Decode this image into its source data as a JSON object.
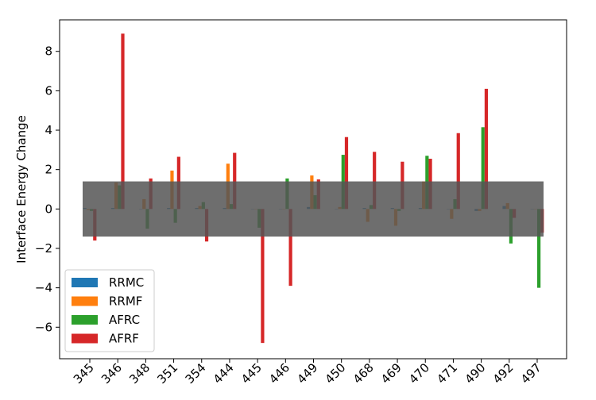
{
  "chart_data": {
    "type": "bar",
    "ylabel": "Interface Energy Change",
    "xlabel": "",
    "categories": [
      "345",
      "346",
      "348",
      "351",
      "354",
      "444",
      "445",
      "446",
      "449",
      "450",
      "468",
      "469",
      "470",
      "471",
      "490",
      "492",
      "497"
    ],
    "ylim": [
      -7.6,
      9.6
    ],
    "yticks": [
      -6,
      -4,
      -2,
      0,
      2,
      4,
      6,
      8
    ],
    "series": [
      {
        "name": "RRMC",
        "color": "#1f77b4",
        "values": [
          0.05,
          0.05,
          0.0,
          0.05,
          0.05,
          0.05,
          0.0,
          0.0,
          0.1,
          0.0,
          0.05,
          0.05,
          0.05,
          0.0,
          -0.1,
          0.15,
          0.0
        ]
      },
      {
        "name": "RRMF",
        "color": "#ff7f0e",
        "values": [
          -0.05,
          1.35,
          0.5,
          1.95,
          0.15,
          2.3,
          0.0,
          0.0,
          1.7,
          0.1,
          -0.65,
          -0.85,
          1.4,
          -0.5,
          -0.1,
          0.3,
          0.0
        ]
      },
      {
        "name": "AFRC",
        "color": "#2ca02c",
        "values": [
          -0.1,
          1.2,
          -1.0,
          -0.7,
          0.35,
          0.25,
          -0.95,
          1.55,
          0.7,
          2.75,
          0.2,
          -0.1,
          2.7,
          0.5,
          4.15,
          -1.75,
          -4.0
        ]
      },
      {
        "name": "AFRF",
        "color": "#d62728",
        "values": [
          -1.6,
          8.9,
          1.55,
          2.65,
          -1.65,
          2.85,
          -6.8,
          -3.9,
          1.5,
          3.65,
          2.9,
          2.4,
          2.55,
          3.85,
          6.1,
          -0.45,
          -1.2
        ]
      }
    ],
    "band": {
      "ymin": -1.4,
      "ymax": 1.4,
      "color": "#555555",
      "opacity": 0.85
    },
    "legend_position": "lower-left"
  }
}
